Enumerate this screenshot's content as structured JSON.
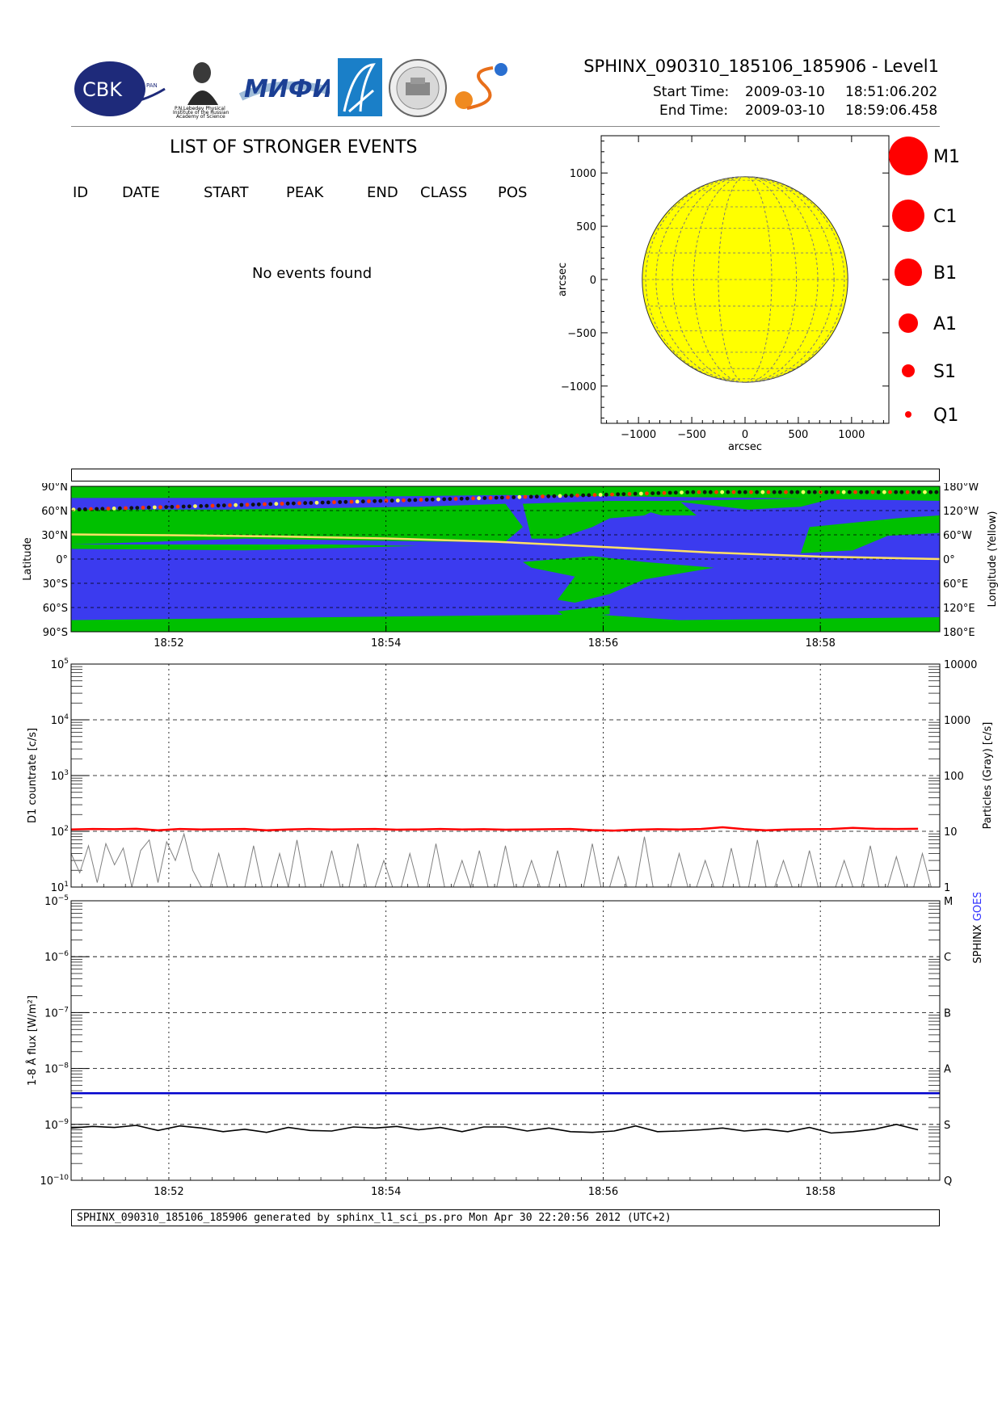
{
  "header": {
    "title": "SPHINX_090310_185106_185906 - Level1",
    "start_label": "Start Time:",
    "start_date": "2009-03-10",
    "start_time": "18:51:06.202",
    "end_label": "End Time:",
    "end_date": "2009-03-10",
    "end_time": "18:59:06.458"
  },
  "logos": {
    "cbk_text": "CBK",
    "cbk_sub": "PAN",
    "lebedev_caption_1": "P.N.Lebedev Physical",
    "lebedev_caption_2": "Institute of the Russian",
    "lebedev_caption_3": "Academy of Science",
    "mifi_text": "МИФИ"
  },
  "events": {
    "title": "LIST OF STRONGER EVENTS",
    "columns": [
      "ID",
      "DATE",
      "START",
      "PEAK",
      "END",
      "CLASS",
      "POS"
    ],
    "empty_message": "No events found"
  },
  "legend_classes": [
    "M1",
    "C1",
    "B1",
    "A1",
    "S1",
    "Q1"
  ],
  "footer": "SPHINX_090310_185106_185906 generated by sphinx_l1_sci_ps.pro Mon Apr 30 22:20:56 2012 (UTC+2)",
  "colors": {
    "sun": "#ffff00",
    "ocean": "#3b3bef",
    "land": "#00c000",
    "track": "#ffe066",
    "sphinx": "#ff0000",
    "goes": "#0000ff",
    "flare_dot": "#ff0000"
  },
  "chart_data": [
    {
      "type": "scatter",
      "name": "solar-disk",
      "xlabel": "arcsec",
      "ylabel": "arcsec",
      "xlim": [
        -1350,
        1350
      ],
      "ylim": [
        -1350,
        1350
      ],
      "xticks": [
        -1000,
        -500,
        0,
        500,
        1000
      ],
      "yticks": [
        -1000,
        -500,
        0,
        500,
        1000
      ],
      "disk_radius": 965,
      "grid": true,
      "events": []
    },
    {
      "type": "heatmap",
      "name": "orbit-map",
      "ylabel_left": "Latitude",
      "ylabel_right": "Longitude (Yellow)",
      "left_ticks": [
        "90°N",
        "60°N",
        "30°N",
        "0°",
        "30°S",
        "60°S",
        "90°S"
      ],
      "right_ticks": [
        "180°W",
        "120°W",
        "60°W",
        "0°",
        "60°E",
        "120°E",
        "180°E"
      ],
      "x_ticks": [
        "18:52",
        "18:54",
        "18:56",
        "18:58"
      ],
      "xlim_minutes": [
        51.1,
        59.1
      ],
      "x_tick_minutes": [
        52,
        54,
        56,
        58
      ],
      "longitude_track": [
        [
          51.1,
          61
        ],
        [
          52,
          59
        ],
        [
          53,
          56
        ],
        [
          54,
          51
        ],
        [
          55,
          43
        ],
        [
          56,
          30
        ],
        [
          57,
          16
        ],
        [
          58,
          6
        ],
        [
          59.1,
          0
        ]
      ]
    },
    {
      "type": "line",
      "name": "d1-countrate",
      "ylabel": "D1 countrate [c/s]",
      "ylabel_right": "Particles (Gray) [c/s]",
      "ylog": true,
      "ylim": [
        10,
        100000
      ],
      "y_ticks_exp": [
        1,
        2,
        3,
        4,
        5
      ],
      "right_ticks": [
        "1",
        "10",
        "100",
        "1000",
        "10000"
      ],
      "x_ticks": [
        "18:52",
        "18:54",
        "18:56",
        "18:58"
      ],
      "series": [
        {
          "color": "#ff0000",
          "x": [
            51.1,
            51.3,
            51.5,
            51.7,
            51.9,
            52.1,
            52.3,
            52.5,
            52.7,
            52.9,
            53.1,
            53.3,
            53.5,
            53.7,
            53.9,
            54.1,
            54.3,
            54.5,
            54.7,
            54.9,
            55.1,
            55.3,
            55.5,
            55.7,
            55.9,
            56.1,
            56.3,
            56.5,
            56.7,
            56.9,
            57.1,
            57.3,
            57.5,
            57.7,
            57.9,
            58.1,
            58.3,
            58.5,
            58.7,
            58.9
          ],
          "values": [
            108,
            110,
            109,
            111,
            104,
            110,
            108,
            109,
            110,
            104,
            108,
            110,
            108,
            109,
            110,
            107,
            108,
            110,
            108,
            109,
            107,
            108,
            109,
            110,
            105,
            103,
            107,
            109,
            108,
            110,
            118,
            109,
            104,
            108,
            109,
            110,
            115,
            111,
            110,
            111
          ]
        },
        {
          "color": "#808080",
          "x": [
            51.1,
            51.18,
            51.26,
            51.34,
            51.42,
            51.5,
            51.58,
            51.66,
            51.74,
            51.82,
            51.9,
            51.98,
            52.06,
            52.14,
            52.22,
            52.3,
            52.38,
            52.46,
            52.54,
            52.62,
            52.7,
            52.78,
            52.86,
            52.94,
            53.02,
            53.1,
            53.18,
            53.26,
            53.34,
            53.42,
            53.5,
            53.58,
            53.66,
            53.74,
            53.82,
            53.9,
            53.98,
            54.06,
            54.14,
            54.22,
            54.3,
            54.38,
            54.46,
            54.54,
            54.62,
            54.7,
            54.78,
            54.86,
            54.94,
            55.02,
            55.1,
            55.18,
            55.26,
            55.34,
            55.42,
            55.5,
            55.58,
            55.66,
            55.74,
            55.82,
            55.9,
            55.98,
            56.06,
            56.14,
            56.22,
            56.3,
            56.38,
            56.46,
            56.54,
            56.62,
            56.7,
            56.78,
            56.86,
            56.94,
            57.02,
            57.1,
            57.18,
            57.26,
            57.34,
            57.42,
            57.5,
            57.58,
            57.66,
            57.74,
            57.82,
            57.9,
            57.98,
            58.06,
            58.14,
            58.22,
            58.3,
            58.38,
            58.46,
            58.54,
            58.62,
            58.7,
            58.78,
            58.86,
            58.94,
            59.02
          ],
          "values": [
            40,
            18,
            55,
            12,
            60,
            25,
            50,
            10,
            45,
            70,
            12,
            65,
            30,
            90,
            20,
            10,
            10,
            40,
            10,
            10,
            10,
            55,
            10,
            10,
            40,
            10,
            70,
            10,
            10,
            10,
            45,
            10,
            10,
            60,
            10,
            10,
            30,
            10,
            10,
            40,
            10,
            10,
            60,
            10,
            10,
            30,
            10,
            45,
            10,
            10,
            55,
            10,
            10,
            30,
            10,
            10,
            45,
            10,
            10,
            10,
            60,
            10,
            10,
            35,
            10,
            10,
            80,
            10,
            10,
            10,
            40,
            10,
            10,
            30,
            10,
            10,
            50,
            10,
            10,
            70,
            10,
            10,
            30,
            10,
            10,
            45,
            10,
            10,
            10,
            30,
            10,
            10,
            55,
            10,
            10,
            35,
            10,
            10,
            40,
            10
          ]
        }
      ]
    },
    {
      "type": "line",
      "name": "flux-1-8A",
      "ylabel": "1-8 Å flux [W/m²]",
      "ylabel_right_black": "SPHINX",
      "ylabel_right_blue": "GOES",
      "ylog": true,
      "ylim": [
        1e-10,
        1e-05
      ],
      "y_ticks_exp": [
        -10,
        -9,
        -8,
        -7,
        -6,
        -5
      ],
      "right_ticks": [
        "Q",
        "S",
        "A",
        "B",
        "C",
        "M"
      ],
      "x_ticks": [
        "18:52",
        "18:54",
        "18:56",
        "18:58"
      ],
      "series": [
        {
          "color": "#0000cc",
          "x": [
            51.1,
            59.1
          ],
          "values": [
            3.6e-09,
            3.6e-09
          ]
        },
        {
          "color": "#000000",
          "x": [
            51.1,
            51.3,
            51.5,
            51.7,
            51.9,
            52.1,
            52.3,
            52.5,
            52.7,
            52.9,
            53.1,
            53.3,
            53.5,
            53.7,
            53.9,
            54.1,
            54.3,
            54.5,
            54.7,
            54.9,
            55.1,
            55.3,
            55.5,
            55.7,
            55.9,
            56.1,
            56.3,
            56.5,
            56.7,
            56.9,
            57.1,
            57.3,
            57.5,
            57.7,
            57.9,
            58.1,
            58.3,
            58.5,
            58.7,
            58.9
          ],
          "values": [
            8.6e-10,
            9.2e-10,
            8.8e-10,
            9.6e-10,
            7.8e-10,
            9.4e-10,
            8.6e-10,
            7.4e-10,
            8.2e-10,
            7.2e-10,
            8.8e-10,
            7.8e-10,
            7.6e-10,
            9e-10,
            8.6e-10,
            9.2e-10,
            8e-10,
            8.8e-10,
            7.4e-10,
            9e-10,
            9e-10,
            7.6e-10,
            8.6e-10,
            7.4e-10,
            7.2e-10,
            7.6e-10,
            9.4e-10,
            7.4e-10,
            7.6e-10,
            8e-10,
            8.6e-10,
            7.6e-10,
            8.2e-10,
            7.4e-10,
            8.8e-10,
            7e-10,
            7.4e-10,
            8.2e-10,
            1e-09,
            8e-10
          ]
        }
      ]
    }
  ]
}
